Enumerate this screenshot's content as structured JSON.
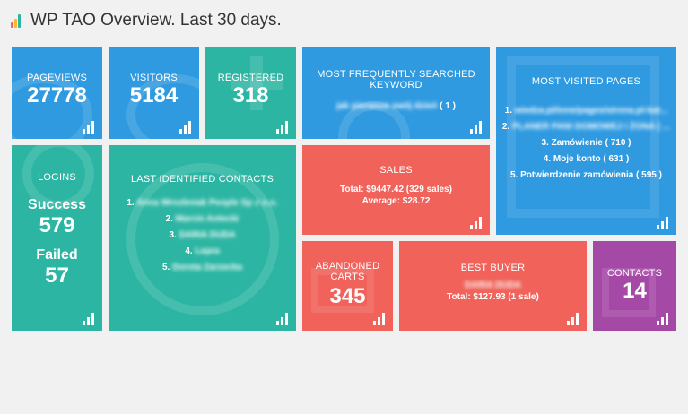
{
  "header": {
    "title": "WP TAO Overview. Last 30 days."
  },
  "pageviews": {
    "label": "PAGEVIEWS",
    "value": "27778"
  },
  "visitors": {
    "label": "VISITORS",
    "value": "5184"
  },
  "registered": {
    "label": "REGISTERED",
    "value": "318"
  },
  "keyword": {
    "label_line1": "MOST FREQUENTLY SEARCHED",
    "label_line2": "KEYWORD",
    "keyword": "jak pierwsze swój dzień",
    "count": "( 1 )"
  },
  "pages": {
    "label": "MOST VISITED PAGES",
    "items": [
      {
        "num": "1.",
        "text": "wiedza.pl/inne/pages/strona.pl-kat..."
      },
      {
        "num": "2.",
        "text": "PLANER PANI DOMOWEJ i ŻONA ( ..."
      },
      {
        "num": "3.",
        "text": "Zamówienie ( 710 )"
      },
      {
        "num": "4.",
        "text": "Moje konto ( 631 )"
      },
      {
        "num": "5.",
        "text": "Potwierdzenie zamówienia ( 595 )"
      }
    ]
  },
  "logins": {
    "label": "LOGINS",
    "success_label": "Success",
    "success_value": "579",
    "failed_label": "Failed",
    "failed_value": "57"
  },
  "contacts_list": {
    "label": "LAST IDENTIFIED CONTACTS",
    "items": [
      {
        "num": "1.",
        "text": "Anna Wrozbniak People Sp z o.o."
      },
      {
        "num": "2.",
        "text": "Marcin Antecki"
      },
      {
        "num": "3.",
        "text": "DARIA DUDA"
      },
      {
        "num": "4.",
        "text": "Lepra"
      },
      {
        "num": "5.",
        "text": "Dorota Zarzecka"
      }
    ]
  },
  "sales": {
    "label": "SALES",
    "total": "Total: $9447.42 (329 sales)",
    "average": "Average: $28.72"
  },
  "abandoned": {
    "label_line1": "ABANDONED",
    "label_line2": "CARTS",
    "value": "345"
  },
  "best_buyer": {
    "label": "BEST BUYER",
    "name": "DARIA DUDA",
    "total": "Total: $127.93 (1 sale)"
  },
  "contacts": {
    "label": "CONTACTS",
    "value": "14"
  },
  "colors": {
    "blue": "#2f9ae0",
    "teal": "#2db5a3",
    "red": "#f0625a",
    "purple": "#a549a7"
  }
}
